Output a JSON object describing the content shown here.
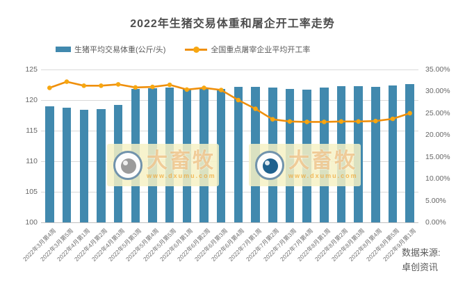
{
  "title": "2022年生猪交易体重和屠企开工率走势",
  "legend": {
    "items": [
      {
        "label": "生猪平均交易体重(公斤/头)",
        "swatch": "bar"
      },
      {
        "label": "全国重点屠宰企业平均开工率",
        "swatch": "line"
      }
    ]
  },
  "source": {
    "line1": "数据来源:",
    "line2": "卓创资讯"
  },
  "watermark": {
    "text": "大畜牧",
    "url": "www.dxumu.com",
    "bg_color": "rgba(246,241,196,0.85)",
    "ring_color": "#7193ac",
    "text_color": "rgba(228,155,62,0.5)",
    "url_color": "rgba(240,162,44,0.7)",
    "instances": [
      {
        "pupil_color": "#9b9b9b"
      },
      {
        "pupil_color": "#1f618e"
      }
    ]
  },
  "colors": {
    "bar": "#4189AE",
    "line": "#EF8F0B",
    "marker": "#F7A711",
    "grid": "#D9D9D9",
    "axis": "#BFBFBF",
    "text": "#595959",
    "tick": "#737373"
  },
  "chart_data": {
    "type": "bar",
    "title": "2022年生猪交易体重和屠企开工率走势",
    "legend_position": "top",
    "grid": true,
    "categories": [
      "2022年3月第4周",
      "2022年3月第5周",
      "2022年4月第1周",
      "2022年4月第2周",
      "2022年4月第3周",
      "2022年5月第3周",
      "2022年5月第4周",
      "2022年5月第5周",
      "2022年6月第1周",
      "2022年6月第2周",
      "2022年6月第3周",
      "2022年6月第4周",
      "2022年7月第1周",
      "2022年7月第2周",
      "2022年7月第3周",
      "2022年7月第4周",
      "2022年8月第1周",
      "2022年8月第2周",
      "2022年8月第3周",
      "2022年8月第4周",
      "2022年8月第5周",
      "2022年9月第1周"
    ],
    "series": [
      {
        "name": "生猪平均交易体重(公斤/头)",
        "type": "bar",
        "axis": "left",
        "unit": "公斤/头",
        "values": [
          119.0,
          118.8,
          118.4,
          118.5,
          119.2,
          121.8,
          121.9,
          122.0,
          121.8,
          121.9,
          121.8,
          122.2,
          122.2,
          122.0,
          121.8,
          121.7,
          122.1,
          122.3,
          122.3,
          122.2,
          122.4,
          122.6
        ]
      },
      {
        "name": "全国重点屠宰企业平均开工率",
        "type": "line",
        "axis": "right",
        "unit": "%",
        "values": [
          30.8,
          32.2,
          31.3,
          31.3,
          31.6,
          30.9,
          31.0,
          31.5,
          30.4,
          30.8,
          30.3,
          28.0,
          26.0,
          23.6,
          23.1,
          23.0,
          23.0,
          23.1,
          23.1,
          23.2,
          23.7,
          25.0
        ]
      }
    ],
    "left_axis": {
      "min": 100,
      "max": 125,
      "step": 5,
      "ticks": [
        "125",
        "120",
        "115",
        "110",
        "105",
        "100"
      ]
    },
    "right_axis": {
      "min": 0,
      "max": 35,
      "step": 5,
      "ticks": [
        "35.00%",
        "30.00%",
        "25.00%",
        "20.00%",
        "15.00%",
        "10.00%",
        "5.00%",
        "0.00%"
      ]
    }
  }
}
